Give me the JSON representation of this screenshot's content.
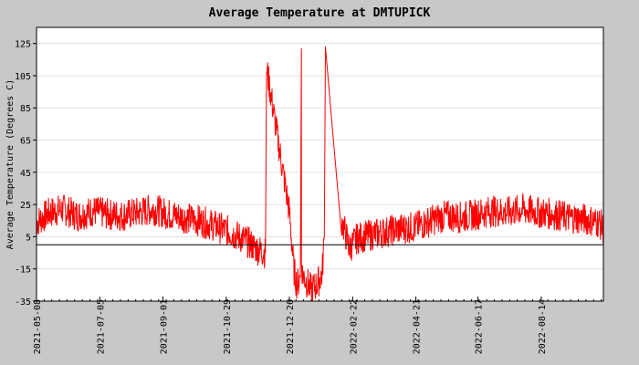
{
  "chart_data": {
    "type": "line",
    "title": "Average Temperature at DMTUPICK",
    "xlabel": "",
    "ylabel": "Average Temperature (Degrees C)",
    "ylim": [
      -35,
      135
    ],
    "yticks": [
      -35,
      -15,
      5,
      25,
      45,
      65,
      85,
      105,
      125
    ],
    "xlim": [
      "2021-05-08",
      "2022-10-10"
    ],
    "xticks": [
      "2021-05-08",
      "2021-07-05",
      "2021-09-01",
      "2021-10-29",
      "2021-12-26",
      "2022-02-22",
      "2022-04-21",
      "2022-06-17",
      "2022-08-14"
    ],
    "grid": true,
    "colors": {
      "series": "#ff0000",
      "plot_bg": "#ffffff",
      "frame_bg": "#c8c8c8",
      "grid": "#e0e0e0"
    },
    "series": [
      {
        "x": [
          "2021-05-08",
          "2021-05-20",
          "2021-06-01",
          "2021-06-15",
          "2021-06-29",
          "2021-07-12",
          "2021-07-26",
          "2021-08-09",
          "2021-08-23",
          "2021-09-06",
          "2021-09-20",
          "2021-10-04",
          "2021-10-18",
          "2021-11-01",
          "2021-11-15",
          "2021-11-27",
          "2021-12-04",
          "2021-12-05",
          "2021-12-12",
          "2021-12-19",
          "2021-12-26",
          "2021-12-30",
          "2022-01-02",
          "2022-01-05",
          "2022-01-06",
          "2022-01-06",
          "2022-01-07",
          "2022-01-10",
          "2022-01-15",
          "2022-01-20",
          "2022-01-25",
          "2022-01-27",
          "2022-01-28",
          "2022-02-05",
          "2022-02-12",
          "2022-02-19",
          "2022-02-26",
          "2022-03-10",
          "2022-03-24",
          "2022-04-07",
          "2022-04-21",
          "2022-05-05",
          "2022-05-19",
          "2022-06-02",
          "2022-06-16",
          "2022-06-30",
          "2022-07-14",
          "2022-07-28",
          "2022-08-11",
          "2022-08-25",
          "2022-09-08",
          "2022-09-22",
          "2022-10-06",
          "2022-10-10"
        ],
        "y": [
          14,
          20,
          22,
          18,
          21,
          19,
          18,
          20,
          22,
          19,
          17,
          15,
          12,
          8,
          3,
          -3,
          -5,
          110,
          80,
          50,
          20,
          -15,
          -25,
          -20,
          122,
          -10,
          -18,
          -22,
          -28,
          -25,
          -18,
          5,
          123,
          60,
          15,
          -2,
          4,
          6,
          8,
          10,
          11,
          15,
          18,
          17,
          19,
          21,
          20,
          22,
          20,
          19,
          17,
          16,
          14,
          10
        ]
      }
    ]
  }
}
